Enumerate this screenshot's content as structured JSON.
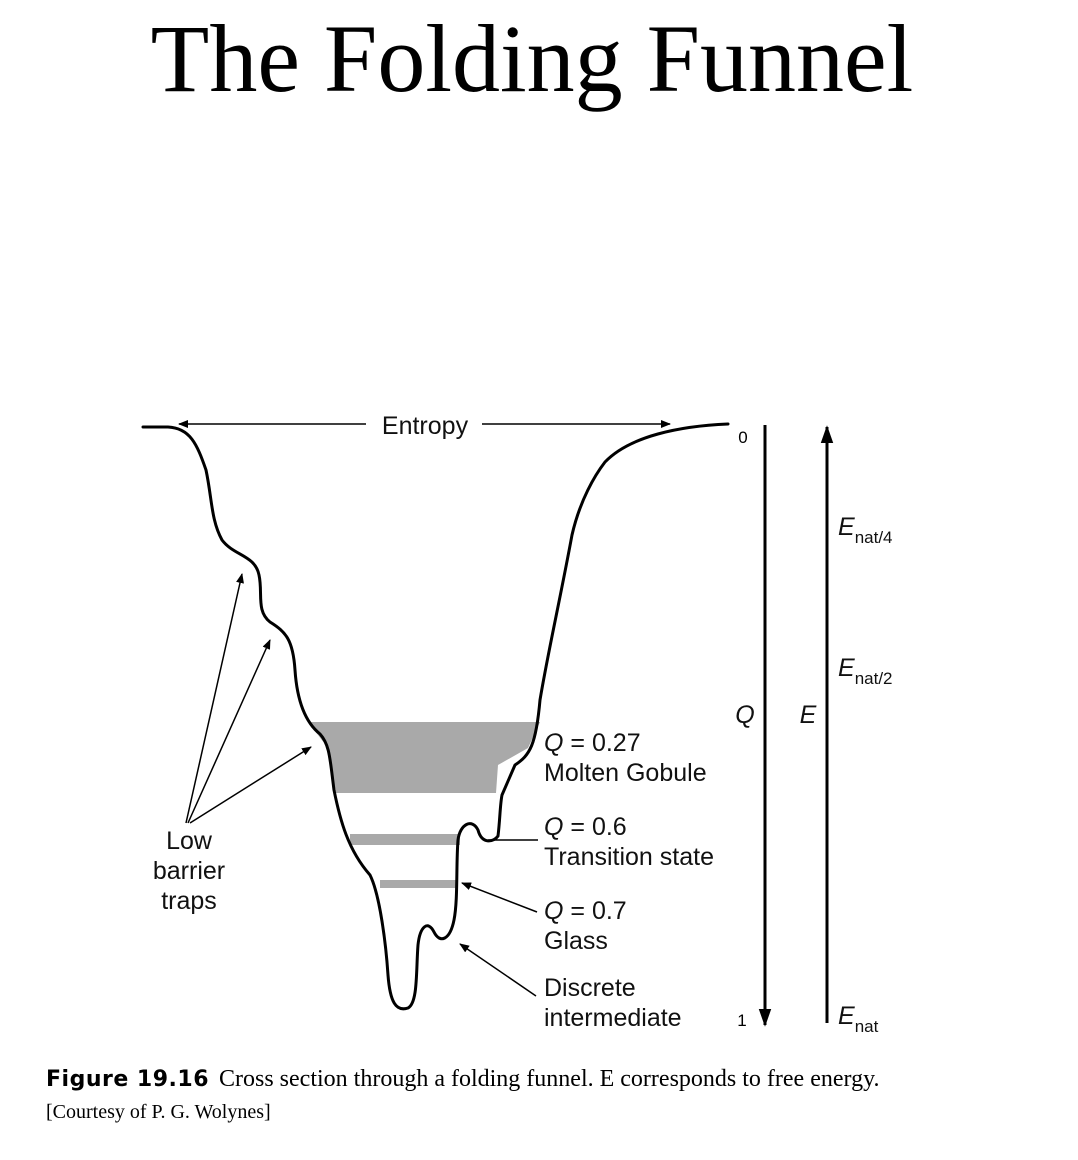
{
  "slide": {
    "title": "The Folding Funnel"
  },
  "diagram": {
    "top_label": "Entropy",
    "q_axis": {
      "label": "Q",
      "top_value": "0",
      "bottom_value": "1"
    },
    "e_axis": {
      "label": "E",
      "ticks": [
        {
          "base": "E",
          "sub": "nat/4"
        },
        {
          "base": "E",
          "sub": "nat/2"
        },
        {
          "base": "E",
          "sub": "nat"
        }
      ]
    },
    "states": [
      {
        "q": "Q",
        "eq": " = 0.27",
        "name": "Molten Gobule"
      },
      {
        "q": "Q",
        "eq": " = 0.6",
        "name": "Transition state"
      },
      {
        "q": "Q",
        "eq": " = 0.7",
        "name": "Glass"
      }
    ],
    "intermediate": {
      "line1": "Discrete",
      "line2": "intermediate"
    },
    "traps": {
      "line1": "Low",
      "line2": "barrier",
      "line3": "traps"
    }
  },
  "caption": {
    "figure_label": "Figure 19.16",
    "text": "Cross section through a folding funnel. E corresponds to free energy.",
    "credit": "[Courtesy of P. G. Wolynes]"
  }
}
